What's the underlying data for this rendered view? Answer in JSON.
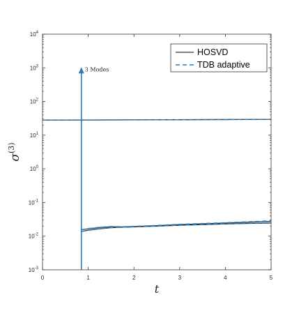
{
  "chart_data": {
    "type": "line",
    "title": "",
    "xlabel": "t",
    "ylabel": {
      "base": "σ",
      "sup": "(3)"
    },
    "xlim": [
      0,
      5
    ],
    "ylim_log10": [
      -3,
      4
    ],
    "yscale": "log",
    "x_ticks": [
      "0",
      "1",
      "2",
      "3",
      "4",
      "5"
    ],
    "y_ticks": [
      {
        "base": "10",
        "exp": "-3"
      },
      {
        "base": "10",
        "exp": "-2"
      },
      {
        "base": "10",
        "exp": "-1"
      },
      {
        "base": "10",
        "exp": "0"
      },
      {
        "base": "10",
        "exp": "1"
      },
      {
        "base": "10",
        "exp": "2"
      },
      {
        "base": "10",
        "exp": "3"
      },
      {
        "base": "10",
        "exp": "4"
      }
    ],
    "grid": false,
    "legend_position": "top-right",
    "legend": [
      {
        "label": "HOSVD",
        "style": "solid",
        "color": "#333333"
      },
      {
        "label": "TDB adaptive",
        "style": "dashed",
        "color": "#2a7ab8"
      }
    ],
    "annotation": {
      "text": "3 Modes",
      "x": 0.85,
      "y": 1000
    },
    "series": [
      {
        "name": "HOSVD",
        "style": "solid",
        "color": "#333333",
        "x": [
          0,
          1,
          2,
          3,
          4,
          5
        ],
        "y": [
          28,
          28.2,
          28.5,
          28.8,
          29.1,
          29.4
        ]
      },
      {
        "name": "TDB adaptive",
        "style": "dashed",
        "color": "#2a7ab8",
        "x": [
          0,
          1,
          2,
          3,
          4,
          5
        ],
        "y": [
          28,
          28.2,
          28.5,
          28.8,
          29.1,
          29.4
        ]
      },
      {
        "name": "",
        "style": "solid",
        "color": "#333333",
        "x": [
          0.85,
          1.0,
          1.25,
          1.5,
          1.75,
          2.0,
          2.5,
          3.0,
          3.5,
          4.0,
          4.5,
          5.0
        ],
        "y": [
          0.0155,
          0.0165,
          0.018,
          0.019,
          0.0188,
          0.0192,
          0.0205,
          0.022,
          0.0232,
          0.0245,
          0.026,
          0.0275
        ]
      },
      {
        "name": "",
        "style": "dashed",
        "color": "#2a7ab8",
        "x": [
          0.85,
          1.0,
          1.25,
          1.5,
          1.75,
          2.0,
          2.5,
          3.0,
          3.5,
          4.0,
          4.5,
          5.0
        ],
        "y": [
          0.0155,
          0.0167,
          0.0183,
          0.0193,
          0.019,
          0.0195,
          0.0208,
          0.0224,
          0.0237,
          0.025,
          0.0267,
          0.0285
        ]
      },
      {
        "name": "",
        "style": "solid",
        "color": "#333333",
        "x": [
          0.85,
          1.0,
          1.25,
          1.5,
          1.75,
          2.0,
          2.5,
          3.0,
          3.5,
          4.0,
          4.5,
          5.0
        ],
        "y": [
          0.0138,
          0.015,
          0.0165,
          0.0178,
          0.0185,
          0.0188,
          0.0198,
          0.021,
          0.022,
          0.023,
          0.0238,
          0.0245
        ]
      },
      {
        "name": "",
        "style": "dashed",
        "color": "#2a7ab8",
        "x": [
          0.85,
          1.0,
          1.25,
          1.5,
          1.75,
          2.0,
          2.5,
          3.0,
          3.5,
          4.0,
          4.5,
          5.0
        ],
        "y": [
          0.0138,
          0.0151,
          0.0167,
          0.018,
          0.0187,
          0.019,
          0.02,
          0.0212,
          0.0222,
          0.0232,
          0.024,
          0.0248
        ]
      }
    ]
  }
}
